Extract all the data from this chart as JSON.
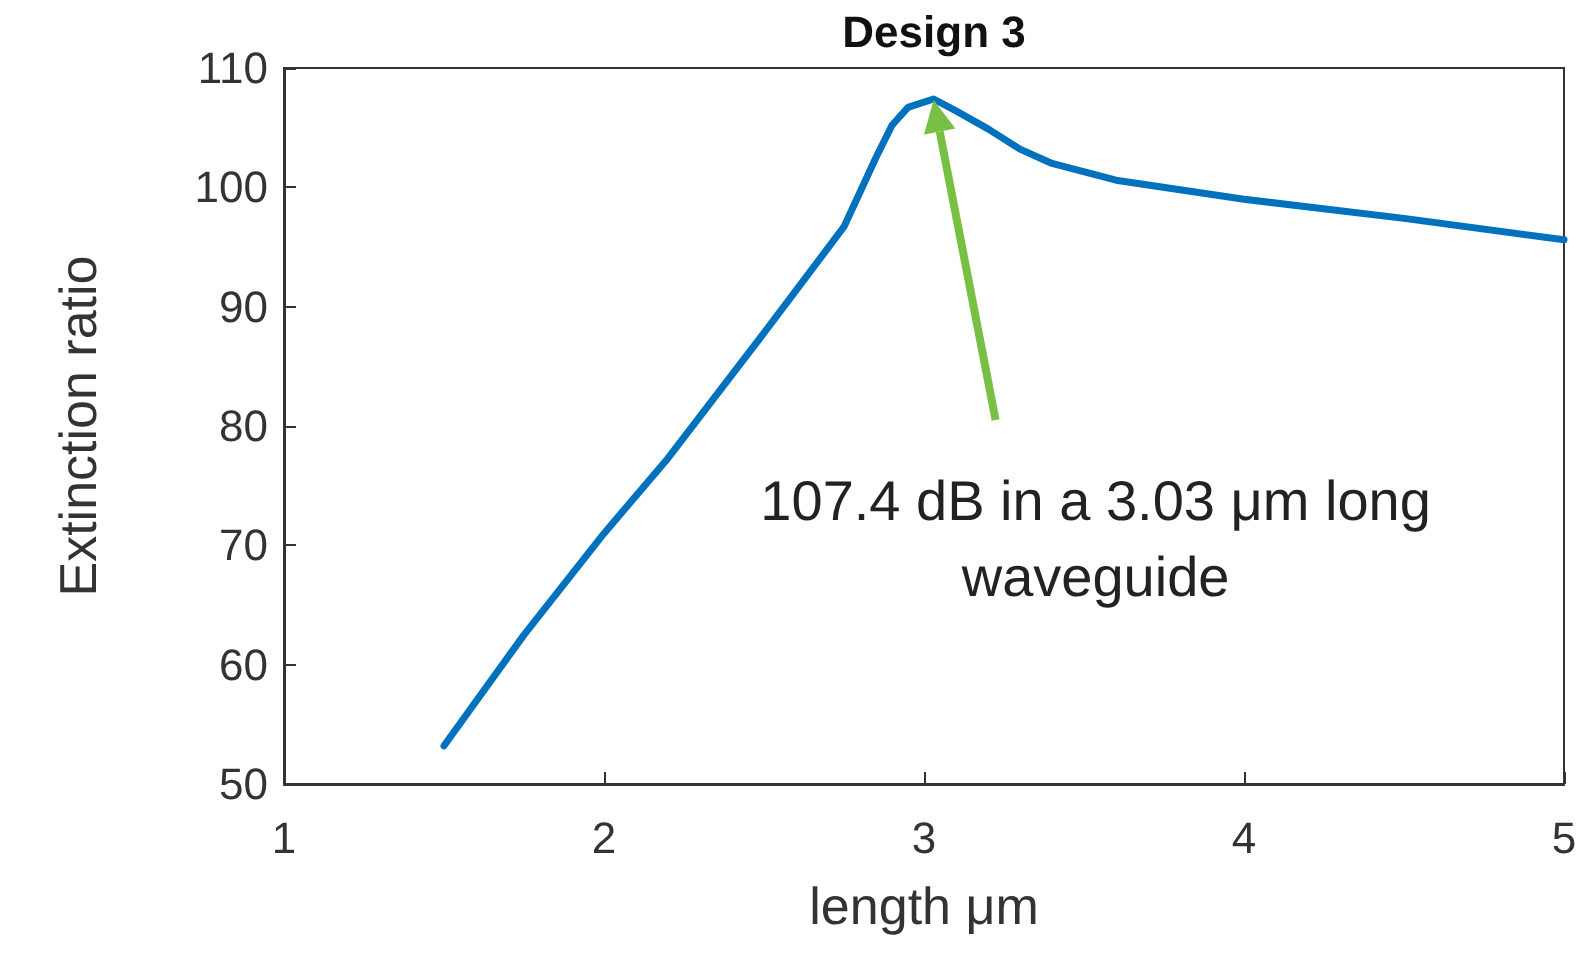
{
  "chart_data": {
    "type": "line",
    "title": "Design 3",
    "xlabel": "length μm",
    "ylabel": "Extinction ratio",
    "x": [
      1.5,
      1.75,
      2,
      2.2,
      2.5,
      2.75,
      2.85,
      2.9,
      2.95,
      3.03,
      3.1,
      3.2,
      3.3,
      3.4,
      3.6,
      4,
      4.5,
      5
    ],
    "series": [
      {
        "color": "#0072bd",
        "values": [
          53.2,
          62.5,
          71,
          77.3,
          87.8,
          96.7,
          102.5,
          105.2,
          106.7,
          107.4,
          106.4,
          104.9,
          103.2,
          102.0,
          100.6,
          99.0,
          97.4,
          95.6
        ]
      }
    ],
    "xlim": [
      1,
      5
    ],
    "xticks": [
      1,
      2,
      3,
      4,
      5
    ],
    "ylim": [
      50,
      110
    ],
    "yticks": [
      50,
      60,
      70,
      80,
      90,
      100,
      110
    ],
    "grid": false,
    "marker": "none",
    "line_style": "solid",
    "annotations": [
      "107.4 dB in a 3.03 μm long waveguide"
    ]
  }
}
